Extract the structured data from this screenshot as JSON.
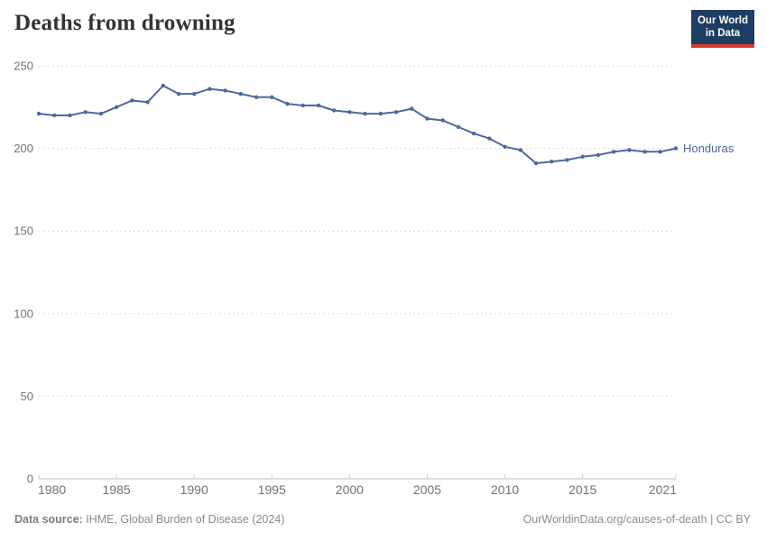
{
  "header": {
    "logo": {
      "line1": "Our World",
      "line2": "in Data"
    }
  },
  "chart_data": {
    "type": "line",
    "title": "Deaths from drowning",
    "xlabel": "",
    "ylabel": "",
    "xlim": [
      1980,
      2021
    ],
    "ylim": [
      0,
      250
    ],
    "grid": "horizontal-dashed",
    "legend_position": "end-of-line-label",
    "x_ticks": [
      1980,
      1985,
      1990,
      1995,
      2000,
      2005,
      2010,
      2015,
      2021
    ],
    "y_ticks": [
      0,
      50,
      100,
      150,
      200,
      250
    ],
    "series": [
      {
        "name": "Honduras",
        "color": "#4c6a9c",
        "x": [
          1980,
          1981,
          1982,
          1983,
          1984,
          1985,
          1986,
          1987,
          1988,
          1989,
          1990,
          1991,
          1992,
          1993,
          1994,
          1995,
          1996,
          1997,
          1998,
          1999,
          2000,
          2001,
          2002,
          2003,
          2004,
          2005,
          2006,
          2007,
          2008,
          2009,
          2010,
          2011,
          2012,
          2013,
          2014,
          2015,
          2016,
          2017,
          2018,
          2019,
          2020,
          2021
        ],
        "values": [
          221,
          220,
          220,
          222,
          221,
          225,
          229,
          228,
          238,
          233,
          233,
          236,
          235,
          233,
          231,
          231,
          227,
          226,
          226,
          223,
          222,
          221,
          221,
          222,
          224,
          218,
          217,
          213,
          209,
          206,
          201,
          199,
          191,
          192,
          193,
          195,
          196,
          198,
          199,
          198,
          198,
          200
        ]
      }
    ]
  },
  "footer": {
    "source_label": "Data source:",
    "source_value": " IHME, Global Burden of Disease (2024)",
    "citation": "OurWorldinData.org/causes-of-death | CC BY"
  },
  "colors": {
    "series_line": "#4c6a9c",
    "grid_line": "#dcdcdc",
    "axis_line": "#bdbdbd",
    "tick_mark": "#cfcfcf",
    "axis_text": "#737373",
    "title_text": "#333333",
    "footer_text": "#898989",
    "logo_bg": "#1d3d63",
    "logo_stripe": "#d6392f"
  }
}
